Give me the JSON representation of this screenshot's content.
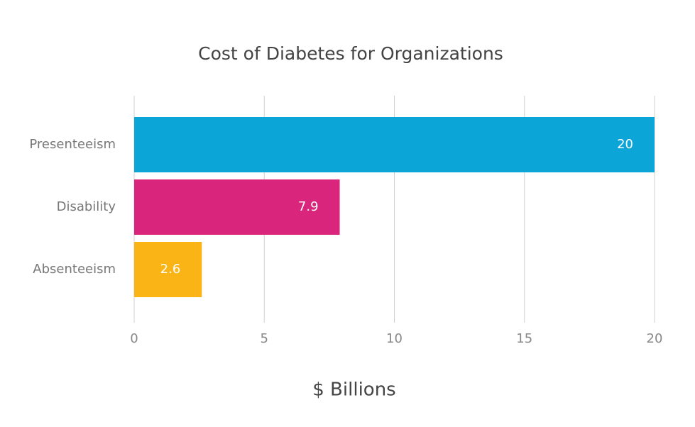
{
  "chart_data": {
    "type": "hbar",
    "title": "Cost of Diabetes for Organizations",
    "x_label": "$ Billions",
    "categories": [
      "Presenteeism",
      "Disability",
      "Absenteeism"
    ],
    "values": [
      20,
      7.9,
      2.6
    ],
    "colors": [
      "#0ca5d7",
      "#d9257b",
      "#fbb416"
    ],
    "xlim": [
      0,
      20
    ],
    "xticks": [
      0,
      5,
      10,
      15,
      20
    ],
    "grid": true
  }
}
